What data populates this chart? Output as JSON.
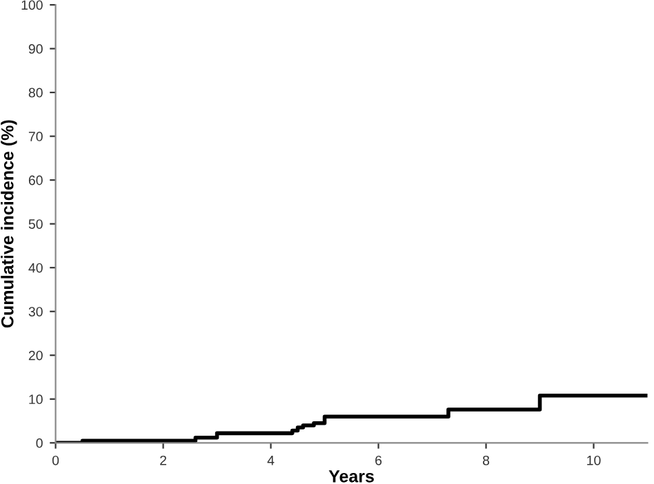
{
  "chart_data": {
    "type": "step",
    "xlabel": "Years",
    "ylabel": "Cumulative incidence (%)",
    "x": [
      0,
      0.5,
      2.6,
      3.0,
      4.4,
      4.5,
      4.6,
      4.8,
      5.0,
      7.3,
      9.0,
      11
    ],
    "series": [
      {
        "color": "#000000",
        "values": [
          0,
          0.5,
          1.2,
          2.2,
          2.8,
          3.5,
          4.0,
          4.5,
          6.0,
          7.6,
          10.8,
          10.8
        ]
      }
    ],
    "xlim": [
      0,
      11
    ],
    "xticks": [
      0,
      2,
      4,
      6,
      8,
      10
    ],
    "ylim": [
      0,
      100
    ],
    "yticks": [
      0,
      10,
      20,
      30,
      40,
      50,
      60,
      70,
      80,
      90,
      100
    ],
    "grid": false,
    "legend": false
  }
}
